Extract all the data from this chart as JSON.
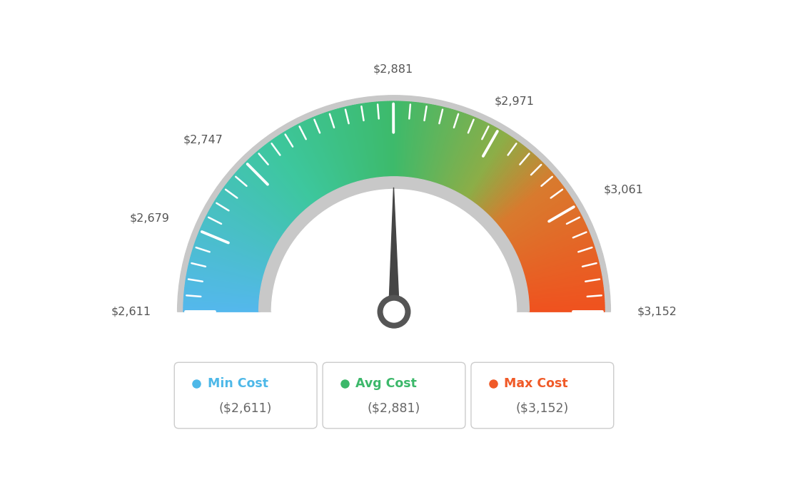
{
  "min_val": 2611,
  "max_val": 3152,
  "avg_val": 2881,
  "tick_labels": [
    "$2,611",
    "$2,679",
    "$2,747",
    "$2,881",
    "$2,971",
    "$3,061",
    "$3,152"
  ],
  "tick_values": [
    2611,
    2679,
    2747,
    2881,
    2971,
    3061,
    3152
  ],
  "legend": [
    {
      "label": "Min Cost",
      "value": "($2,611)",
      "color": "#4db8e8"
    },
    {
      "label": "Avg Cost",
      "value": "($2,881)",
      "color": "#3cb86a"
    },
    {
      "label": "Max Cost",
      "value": "($3,152)",
      "color": "#f05a28"
    }
  ],
  "background_color": "#ffffff",
  "needle_color": "#4a4a4a",
  "outer_border_color": "#d0d0d0",
  "inner_ring_color": "#d8d8d8",
  "colors_gradient": [
    [
      0.0,
      "#55c0ec"
    ],
    [
      0.25,
      "#45c9a0"
    ],
    [
      0.5,
      "#3dba6a"
    ],
    [
      0.65,
      "#8db84a"
    ],
    [
      0.75,
      "#d4833a"
    ],
    [
      1.0,
      "#f05020"
    ]
  ]
}
